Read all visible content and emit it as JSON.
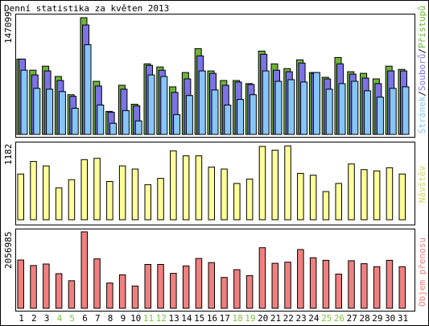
{
  "title": "Denní statistika za květen 2013",
  "legend": {
    "hits": "Přístupů",
    "files": "Souborů",
    "pages": "Stránek",
    "visits": "Návštěv",
    "volume": "Objem přenosu",
    "separator": "/"
  },
  "colors": {
    "hits": "#6fb43a",
    "files": "#7b73e6",
    "pages": "#86c5f7",
    "visits": "#ffff99",
    "volume": "#f08080",
    "weekend_label": "#7ec23a",
    "weekday_label": "#000000",
    "frame": "#000000",
    "panel_bg": "#ffffff"
  },
  "chart_data": [
    {
      "type": "bar",
      "title": "Denní statistika za květen 2013",
      "ylabel": "147099",
      "ylim": [
        0,
        147099
      ],
      "categories": [
        "1",
        "2",
        "3",
        "4",
        "5",
        "6",
        "7",
        "8",
        "9",
        "10",
        "11",
        "12",
        "13",
        "14",
        "15",
        "16",
        "17",
        "18",
        "19",
        "20",
        "21",
        "22",
        "23",
        "24",
        "25",
        "26",
        "27",
        "28",
        "29",
        "30",
        "31"
      ],
      "weekend_days": [
        "4",
        "5",
        "11",
        "12",
        "18",
        "19",
        "25",
        "26"
      ],
      "series": [
        {
          "name": "Přístupů",
          "values": [
            95000,
            81000,
            86000,
            73000,
            50000,
            147099,
            67000,
            29000,
            62000,
            38000,
            89000,
            85000,
            60000,
            78000,
            108000,
            80000,
            68000,
            68000,
            64000,
            105000,
            89000,
            83000,
            94000,
            78000,
            72000,
            97000,
            79000,
            77000,
            70000,
            86000,
            82000
          ]
        },
        {
          "name": "Souborů",
          "values": [
            95000,
            75000,
            80000,
            68000,
            48000,
            138000,
            61000,
            28000,
            57000,
            36000,
            87000,
            81000,
            53000,
            70000,
            99000,
            77000,
            62000,
            66000,
            63000,
            101000,
            81000,
            79000,
            90000,
            77000,
            70000,
            89000,
            76000,
            71000,
            64000,
            80000,
            80000
          ]
        },
        {
          "name": "Stránek",
          "values": [
            81000,
            58000,
            57000,
            54000,
            33000,
            113000,
            37000,
            14000,
            30000,
            17000,
            75000,
            73000,
            25000,
            49000,
            80000,
            56000,
            37000,
            44000,
            50000,
            80000,
            67000,
            69000,
            66000,
            78000,
            57000,
            64000,
            67000,
            55000,
            47000,
            58000,
            60000
          ]
        }
      ]
    },
    {
      "type": "bar",
      "ylabel": "1182",
      "ylim": [
        0,
        1182
      ],
      "categories": [
        "1",
        "2",
        "3",
        "4",
        "5",
        "6",
        "7",
        "8",
        "9",
        "10",
        "11",
        "12",
        "13",
        "14",
        "15",
        "16",
        "17",
        "18",
        "19",
        "20",
        "21",
        "22",
        "23",
        "24",
        "25",
        "26",
        "27",
        "28",
        "29",
        "30",
        "31"
      ],
      "series": [
        {
          "name": "Návštěv",
          "values": [
            730,
            930,
            860,
            510,
            640,
            960,
            980,
            610,
            860,
            810,
            560,
            660,
            1100,
            1020,
            1020,
            840,
            810,
            580,
            650,
            1170,
            1110,
            1180,
            740,
            710,
            450,
            580,
            890,
            800,
            780,
            830,
            730
          ]
        }
      ]
    },
    {
      "type": "bar",
      "ylabel": "2056985",
      "ylim": [
        0,
        2056985
      ],
      "categories": [
        "1",
        "2",
        "3",
        "4",
        "5",
        "6",
        "7",
        "8",
        "9",
        "10",
        "11",
        "12",
        "13",
        "14",
        "15",
        "16",
        "17",
        "18",
        "19",
        "20",
        "21",
        "22",
        "23",
        "24",
        "25",
        "26",
        "27",
        "28",
        "29",
        "30",
        "31"
      ],
      "series": [
        {
          "name": "Objem přenosu",
          "values": [
            1300000,
            1150000,
            1190000,
            930000,
            740000,
            2056985,
            1330000,
            680000,
            900000,
            600000,
            1180000,
            1180000,
            940000,
            1140000,
            1340000,
            1230000,
            830000,
            1040000,
            880000,
            1630000,
            1210000,
            1240000,
            1580000,
            1360000,
            1290000,
            920000,
            1280000,
            1200000,
            1120000,
            1290000,
            1120000
          ]
        }
      ]
    }
  ]
}
